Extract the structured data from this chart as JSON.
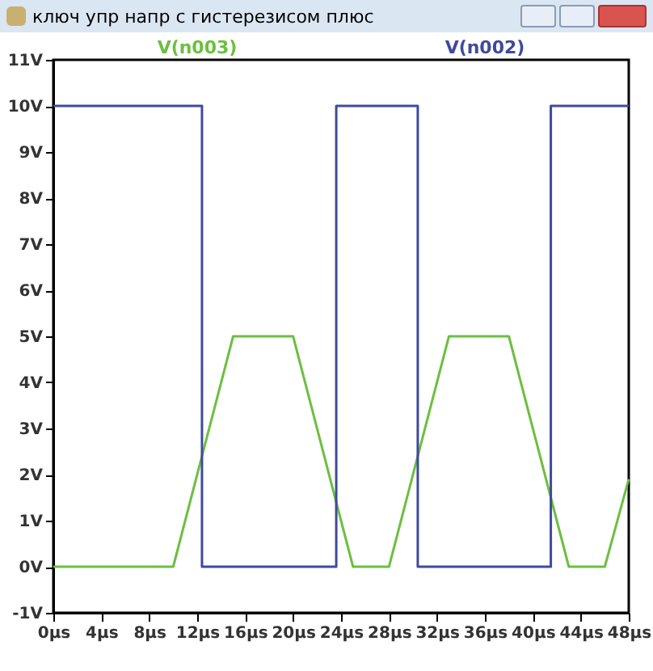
{
  "chart_data": {
    "type": "line",
    "title": "ключ упр напр с гистерезисом плюс",
    "xlim": [
      0,
      48
    ],
    "xticks": [
      {
        "value": 0,
        "label": "0µs"
      },
      {
        "value": 4,
        "label": "4µs"
      },
      {
        "value": 8,
        "label": "8µs"
      },
      {
        "value": 12,
        "label": "12µs"
      },
      {
        "value": 16,
        "label": "16µs"
      },
      {
        "value": 20,
        "label": "20µs"
      },
      {
        "value": 24,
        "label": "24µs"
      },
      {
        "value": 28,
        "label": "28µs"
      },
      {
        "value": 32,
        "label": "32µs"
      },
      {
        "value": 36,
        "label": "36µs"
      },
      {
        "value": 40,
        "label": "40µs"
      },
      {
        "value": 44,
        "label": "44µs"
      },
      {
        "value": 48,
        "label": "48µs"
      }
    ],
    "ylim": [
      -1,
      11
    ],
    "yticks": [
      {
        "value": -1,
        "label": "-1V"
      },
      {
        "value": 0,
        "label": "0V"
      },
      {
        "value": 1,
        "label": "1V"
      },
      {
        "value": 2,
        "label": "2V"
      },
      {
        "value": 3,
        "label": "3V"
      },
      {
        "value": 4,
        "label": "4V"
      },
      {
        "value": 5,
        "label": "5V"
      },
      {
        "value": 6,
        "label": "6V"
      },
      {
        "value": 7,
        "label": "7V"
      },
      {
        "value": 8,
        "label": "8V"
      },
      {
        "value": 9,
        "label": "9V"
      },
      {
        "value": 10,
        "label": "10V"
      },
      {
        "value": 11,
        "label": "11V"
      }
    ],
    "grid": false,
    "series": [
      {
        "name": "V(n003)",
        "color": "#6cbf40",
        "x": [
          0,
          10,
          15,
          20,
          25,
          28,
          33,
          38,
          43,
          46,
          48
        ],
        "values": [
          0,
          0,
          5,
          5,
          0,
          0,
          5,
          5,
          0,
          0,
          1.9
        ]
      },
      {
        "name": "V(n002)",
        "color": "#404a9c",
        "x": [
          0,
          12.4,
          12.4,
          23.6,
          23.6,
          30.4,
          30.4,
          41.5,
          41.5,
          48
        ],
        "values": [
          10,
          10,
          0,
          0,
          10,
          10,
          0,
          0,
          10,
          10
        ]
      }
    ]
  }
}
